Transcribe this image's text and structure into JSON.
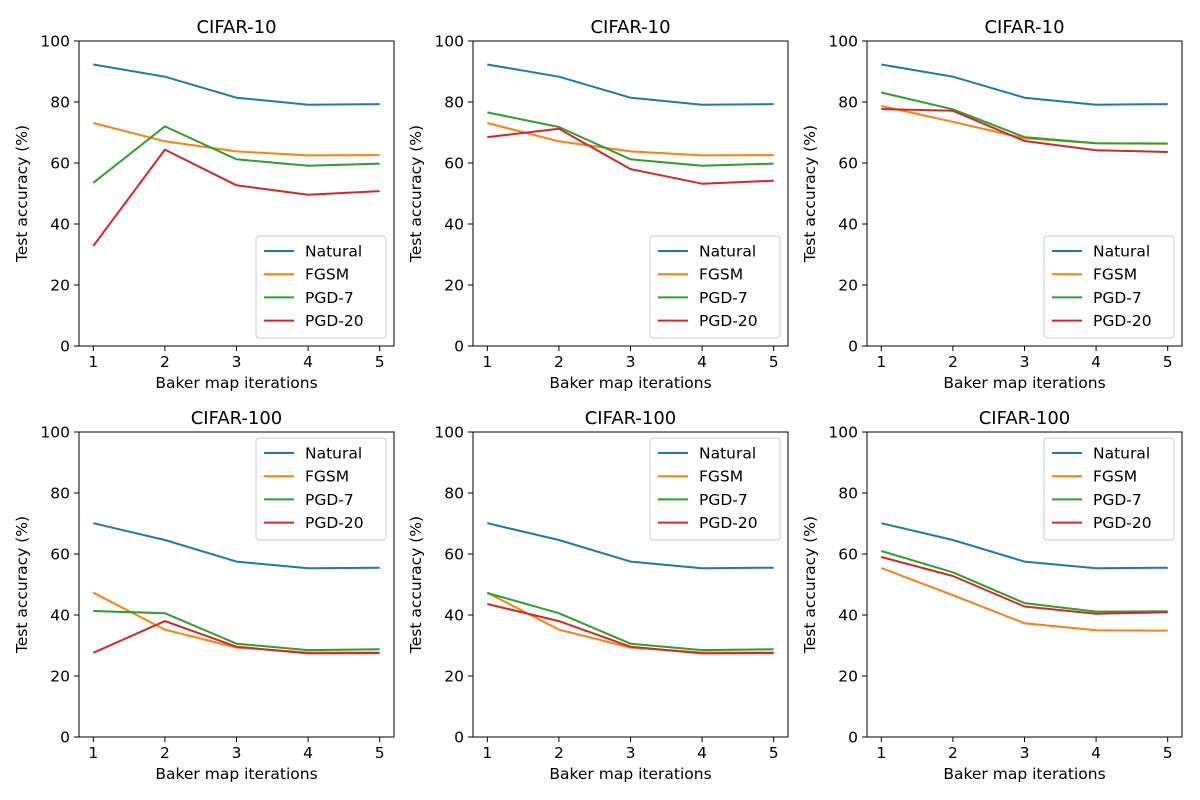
{
  "chart_data": [
    {
      "type": "line",
      "title": "CIFAR-10",
      "xlabel": "Baker map iterations",
      "ylabel": "Test accuracy (%)",
      "x": [
        1,
        2,
        3,
        4,
        5
      ],
      "xticks": [
        "1",
        "2",
        "3",
        "4",
        "5"
      ],
      "ylim": [
        0,
        100
      ],
      "yticks": [
        "0",
        "20",
        "40",
        "60",
        "80",
        "100"
      ],
      "legend_position": "lower-right",
      "series": [
        {
          "name": "Natural",
          "color": "#1f77b4",
          "values": [
            92.3,
            88.3,
            81.4,
            79.1,
            79.3
          ]
        },
        {
          "name": "FGSM",
          "color": "#ff7f0e",
          "values": [
            73.1,
            67.1,
            63.8,
            62.5,
            62.6
          ]
        },
        {
          "name": "PGD-7",
          "color": "#2ca02c",
          "values": [
            53.5,
            72.0,
            61.2,
            59.1,
            59.8
          ]
        },
        {
          "name": "PGD-20",
          "color": "#d62728",
          "values": [
            32.8,
            64.4,
            52.7,
            49.6,
            50.8
          ]
        }
      ]
    },
    {
      "type": "line",
      "title": "CIFAR-10",
      "xlabel": "Baker map iterations",
      "ylabel": "Test accuracy (%)",
      "x": [
        1,
        2,
        3,
        4,
        5
      ],
      "xticks": [
        "1",
        "2",
        "3",
        "4",
        "5"
      ],
      "ylim": [
        0,
        100
      ],
      "yticks": [
        "0",
        "20",
        "40",
        "60",
        "80",
        "100"
      ],
      "legend_position": "lower-right",
      "series": [
        {
          "name": "Natural",
          "color": "#1f77b4",
          "values": [
            92.3,
            88.3,
            81.4,
            79.1,
            79.3
          ]
        },
        {
          "name": "FGSM",
          "color": "#ff7f0e",
          "values": [
            73.1,
            67.1,
            63.8,
            62.5,
            62.6
          ]
        },
        {
          "name": "PGD-7",
          "color": "#2ca02c",
          "values": [
            76.6,
            71.8,
            61.2,
            59.1,
            59.8
          ]
        },
        {
          "name": "PGD-20",
          "color": "#d62728",
          "values": [
            68.5,
            71.2,
            58.0,
            53.2,
            54.2
          ]
        }
      ]
    },
    {
      "type": "line",
      "title": "CIFAR-10",
      "xlabel": "Baker map iterations",
      "ylabel": "Test accuracy (%)",
      "x": [
        1,
        2,
        3,
        4,
        5
      ],
      "xticks": [
        "1",
        "2",
        "3",
        "4",
        "5"
      ],
      "ylim": [
        0,
        100
      ],
      "yticks": [
        "0",
        "20",
        "40",
        "60",
        "80",
        "100"
      ],
      "legend_position": "lower-right",
      "series": [
        {
          "name": "Natural",
          "color": "#1f77b4",
          "values": [
            92.3,
            88.3,
            81.4,
            79.1,
            79.3
          ]
        },
        {
          "name": "FGSM",
          "color": "#ff7f0e",
          "values": [
            78.7,
            73.5,
            68.1,
            66.5,
            66.3
          ]
        },
        {
          "name": "PGD-7",
          "color": "#2ca02c",
          "values": [
            83.1,
            77.6,
            68.5,
            66.5,
            66.4
          ]
        },
        {
          "name": "PGD-20",
          "color": "#d62728",
          "values": [
            77.7,
            77.1,
            67.2,
            64.2,
            63.6
          ]
        }
      ]
    },
    {
      "type": "line",
      "title": "CIFAR-100",
      "xlabel": "Baker map iterations",
      "ylabel": "Test accuracy (%)",
      "x": [
        1,
        2,
        3,
        4,
        5
      ],
      "xticks": [
        "1",
        "2",
        "3",
        "4",
        "5"
      ],
      "ylim": [
        0,
        100
      ],
      "yticks": [
        "0",
        "20",
        "40",
        "60",
        "80",
        "100"
      ],
      "legend_position": "upper-right",
      "series": [
        {
          "name": "Natural",
          "color": "#1f77b4",
          "values": [
            70.1,
            64.6,
            57.5,
            55.3,
            55.5
          ]
        },
        {
          "name": "FGSM",
          "color": "#ff7f0e",
          "values": [
            47.3,
            35.2,
            29.3,
            27.7,
            27.7
          ]
        },
        {
          "name": "PGD-7",
          "color": "#2ca02c",
          "values": [
            41.3,
            40.6,
            30.6,
            28.5,
            28.8
          ]
        },
        {
          "name": "PGD-20",
          "color": "#d62728",
          "values": [
            27.6,
            38.0,
            29.6,
            27.4,
            27.5
          ]
        }
      ]
    },
    {
      "type": "line",
      "title": "CIFAR-100",
      "xlabel": "Baker map iterations",
      "ylabel": "Test accuracy (%)",
      "x": [
        1,
        2,
        3,
        4,
        5
      ],
      "xticks": [
        "1",
        "2",
        "3",
        "4",
        "5"
      ],
      "ylim": [
        0,
        100
      ],
      "yticks": [
        "0",
        "20",
        "40",
        "60",
        "80",
        "100"
      ],
      "legend_position": "upper-right",
      "series": [
        {
          "name": "Natural",
          "color": "#1f77b4",
          "values": [
            70.1,
            64.6,
            57.5,
            55.3,
            55.5
          ]
        },
        {
          "name": "FGSM",
          "color": "#ff7f0e",
          "values": [
            47.3,
            35.2,
            29.3,
            27.7,
            27.7
          ]
        },
        {
          "name": "PGD-7",
          "color": "#2ca02c",
          "values": [
            47.2,
            40.6,
            30.6,
            28.5,
            28.8
          ]
        },
        {
          "name": "PGD-20",
          "color": "#d62728",
          "values": [
            43.6,
            38.0,
            29.6,
            27.4,
            27.5
          ]
        }
      ]
    },
    {
      "type": "line",
      "title": "CIFAR-100",
      "xlabel": "Baker map iterations",
      "ylabel": "Test accuracy (%)",
      "x": [
        1,
        2,
        3,
        4,
        5
      ],
      "xticks": [
        "1",
        "2",
        "3",
        "4",
        "5"
      ],
      "ylim": [
        0,
        100
      ],
      "yticks": [
        "0",
        "20",
        "40",
        "60",
        "80",
        "100"
      ],
      "legend_position": "upper-right",
      "series": [
        {
          "name": "Natural",
          "color": "#1f77b4",
          "values": [
            70.1,
            64.6,
            57.5,
            55.3,
            55.5
          ]
        },
        {
          "name": "FGSM",
          "color": "#ff7f0e",
          "values": [
            55.4,
            46.5,
            37.3,
            35.0,
            34.9
          ]
        },
        {
          "name": "PGD-7",
          "color": "#2ca02c",
          "values": [
            61.0,
            54.0,
            43.9,
            41.1,
            41.2
          ]
        },
        {
          "name": "PGD-20",
          "color": "#d62728",
          "values": [
            59.0,
            52.8,
            42.8,
            40.4,
            40.9
          ]
        }
      ]
    }
  ]
}
